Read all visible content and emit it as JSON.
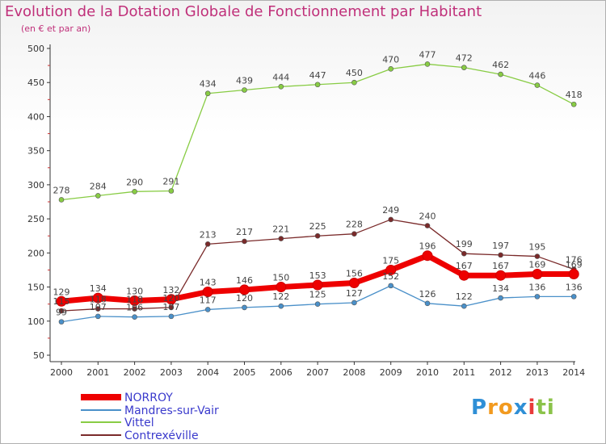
{
  "title": "Evolution de la Dotation Globale de Fonctionnement par Habitant",
  "subtitle": "(en € et par an)",
  "logo": "Proxiti",
  "chart_data": {
    "type": "line",
    "title": "Evolution de la Dotation Globale de Fonctionnement par Habitant",
    "subtitle": "(en € et par an)",
    "x": [
      "2000",
      "2001",
      "2002",
      "2003",
      "2004",
      "2005",
      "2006",
      "2007",
      "2008",
      "2009",
      "2010",
      "2011",
      "2012",
      "2013",
      "2014"
    ],
    "ylim": [
      50,
      500
    ],
    "yticks": [
      50,
      100,
      150,
      200,
      250,
      300,
      350,
      400,
      450,
      500
    ],
    "grid": false,
    "legend_position": "bottom-left",
    "series": [
      {
        "name": "NORROY",
        "color": "#ee0000",
        "values": [
          129,
          134,
          130,
          132,
          143,
          146,
          150,
          153,
          156,
          175,
          196,
          167,
          167,
          169,
          169
        ],
        "labels": [
          "129",
          "134",
          "130",
          "132",
          "143",
          "146",
          "150",
          "153",
          "156",
          "175",
          "196",
          "167",
          "167",
          "169",
          "169"
        ]
      },
      {
        "name": "Mandres-sur-Vair",
        "color": "#4a90c9",
        "values": [
          99,
          107,
          106,
          107,
          117,
          120,
          122,
          125,
          127,
          152,
          126,
          122,
          134,
          136,
          136
        ],
        "labels": [
          "99",
          "107",
          "106",
          "107",
          "117",
          "120",
          "122",
          "125",
          "127",
          "152",
          "126",
          "122",
          "134",
          "136",
          "136"
        ]
      },
      {
        "name": "Vittel",
        "color": "#88cc44",
        "values": [
          278,
          284,
          290,
          291,
          434,
          439,
          444,
          447,
          450,
          470,
          477,
          472,
          462,
          446,
          418
        ],
        "labels": [
          "278",
          "284",
          "290",
          "291",
          "434",
          "439",
          "444",
          "447",
          "450",
          "470",
          "477",
          "472",
          "462",
          "446",
          "418"
        ]
      },
      {
        "name": "Contrexéville",
        "color": "#7a2a2a",
        "values": [
          115,
          118,
          118,
          120,
          213,
          217,
          221,
          225,
          228,
          249,
          240,
          199,
          197,
          195,
          176
        ],
        "labels": [
          "115",
          "118",
          "118",
          "120",
          "213",
          "217",
          "221",
          "225",
          "228",
          "249",
          "240",
          "199",
          "197",
          "195",
          "176"
        ]
      }
    ]
  }
}
